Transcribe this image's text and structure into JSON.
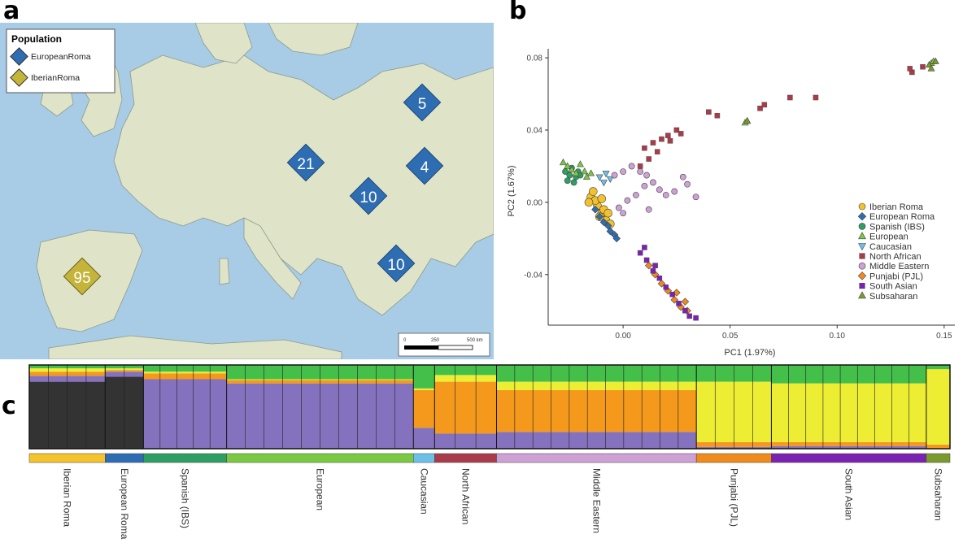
{
  "panels": {
    "a": "a",
    "b": "b",
    "c": "c"
  },
  "map": {
    "legend_title": "Population",
    "legend_items": [
      {
        "label": "EuropeanRoma",
        "color": "#2f6db3"
      },
      {
        "label": "IberianRoma",
        "color": "#c4b43a"
      }
    ],
    "markers": [
      {
        "label": "5",
        "pop": "EuropeanRoma"
      },
      {
        "label": "21",
        "pop": "EuropeanRoma"
      },
      {
        "label": "4",
        "pop": "EuropeanRoma"
      },
      {
        "label": "10",
        "pop": "EuropeanRoma"
      },
      {
        "label": "10",
        "pop": "EuropeanRoma"
      },
      {
        "label": "95",
        "pop": "IberianRoma"
      }
    ],
    "scale_bar": {
      "ticks": [
        "0",
        "250",
        "500 km"
      ]
    },
    "colors": {
      "sea": "#a8cce6",
      "land": "#dfe3c8"
    }
  },
  "chart_data": [
    {
      "type": "scatter",
      "title": "",
      "xlabel": "PC1 (1.97%)",
      "ylabel": "PC2 (1.67%)",
      "xlim": [
        -0.035,
        0.155
      ],
      "ylim": [
        -0.068,
        0.085
      ],
      "x_ticks": [
        "0.00",
        "0.05",
        "0.10",
        "0.15"
      ],
      "x_tick_values": [
        0.0,
        0.05,
        0.1,
        0.15
      ],
      "y_ticks": [
        "0.08",
        "0.04",
        "0.00",
        "-0.04"
      ],
      "y_tick_values": [
        0.08,
        0.04,
        0.0,
        -0.04
      ],
      "legend_position": "right",
      "series": [
        {
          "name": "Iberian Roma",
          "color": "#f2c12e",
          "shape": "circle",
          "points": [
            [
              -0.012,
              -0.002
            ],
            [
              -0.015,
              0.003
            ],
            [
              -0.01,
              -0.006
            ],
            [
              -0.008,
              -0.01
            ],
            [
              -0.013,
              0.001
            ],
            [
              -0.009,
              -0.004
            ],
            [
              -0.011,
              -0.008
            ],
            [
              -0.006,
              -0.012
            ],
            [
              -0.014,
              0.006
            ],
            [
              -0.016,
              0.0
            ],
            [
              -0.007,
              -0.006
            ],
            [
              -0.01,
              0.002
            ]
          ]
        },
        {
          "name": "European Roma",
          "color": "#2f6db3",
          "shape": "diamond",
          "points": [
            [
              -0.011,
              -0.008
            ],
            [
              -0.007,
              -0.013
            ],
            [
              -0.004,
              -0.018
            ],
            [
              -0.013,
              -0.004
            ],
            [
              -0.009,
              -0.011
            ],
            [
              -0.006,
              -0.016
            ],
            [
              -0.003,
              -0.02
            ]
          ]
        },
        {
          "name": "Spanish (IBS)",
          "color": "#2e9e63",
          "shape": "circle",
          "points": [
            [
              -0.027,
              0.017
            ],
            [
              -0.025,
              0.015
            ],
            [
              -0.024,
              0.019
            ],
            [
              -0.022,
              0.014
            ],
            [
              -0.026,
              0.012
            ],
            [
              -0.021,
              0.017
            ],
            [
              -0.023,
              0.011
            ],
            [
              -0.02,
              0.015
            ]
          ]
        },
        {
          "name": "European",
          "color": "#7bc943",
          "shape": "triangle",
          "points": [
            [
              -0.028,
              0.022
            ],
            [
              -0.026,
              0.02
            ],
            [
              -0.024,
              0.018
            ],
            [
              -0.02,
              0.021
            ],
            [
              -0.018,
              0.017
            ],
            [
              -0.022,
              0.016
            ],
            [
              -0.017,
              0.014
            ],
            [
              -0.015,
              0.016
            ],
            [
              0.058,
              0.045
            ],
            [
              0.057,
              0.044
            ],
            [
              0.144,
              0.077
            ],
            [
              0.145,
              0.078
            ]
          ]
        },
        {
          "name": "Caucasian",
          "color": "#6cc0e8",
          "shape": "triangle-down",
          "points": [
            [
              -0.011,
              0.014
            ],
            [
              -0.008,
              0.016
            ],
            [
              -0.006,
              0.013
            ],
            [
              -0.009,
              0.011
            ]
          ]
        },
        {
          "name": "North African",
          "color": "#a83c4a",
          "shape": "square",
          "points": [
            [
              0.01,
              0.03
            ],
            [
              0.014,
              0.033
            ],
            [
              0.018,
              0.035
            ],
            [
              0.021,
              0.037
            ],
            [
              0.025,
              0.04
            ],
            [
              0.022,
              0.034
            ],
            [
              0.027,
              0.038
            ],
            [
              0.016,
              0.028
            ],
            [
              0.012,
              0.024
            ],
            [
              0.008,
              0.02
            ],
            [
              0.04,
              0.05
            ],
            [
              0.044,
              0.048
            ],
            [
              0.064,
              0.052
            ],
            [
              0.066,
              0.054
            ],
            [
              0.078,
              0.058
            ],
            [
              0.09,
              0.058
            ],
            [
              0.135,
              0.072
            ],
            [
              0.134,
              0.074
            ],
            [
              0.14,
              0.075
            ]
          ]
        },
        {
          "name": "Middle Eastern",
          "color": "#cda0d6",
          "shape": "circle",
          "points": [
            [
              -0.004,
              0.015
            ],
            [
              0.0,
              0.017
            ],
            [
              0.004,
              0.02
            ],
            [
              0.008,
              0.017
            ],
            [
              0.011,
              0.015
            ],
            [
              0.014,
              0.011
            ],
            [
              0.017,
              0.007
            ],
            [
              0.02,
              0.004
            ],
            [
              0.024,
              0.006
            ],
            [
              0.028,
              0.014
            ],
            [
              0.03,
              0.01
            ],
            [
              0.034,
              0.003
            ],
            [
              0.01,
              0.009
            ],
            [
              0.006,
              0.004
            ],
            [
              0.002,
              0.001
            ],
            [
              -0.002,
              -0.003
            ],
            [
              0.0,
              -0.006
            ],
            [
              0.012,
              -0.004
            ]
          ]
        },
        {
          "name": "Punjabi (PJL)",
          "color": "#f08a1d",
          "shape": "diamond",
          "points": [
            [
              0.012,
              -0.035
            ],
            [
              0.015,
              -0.04
            ],
            [
              0.018,
              -0.045
            ],
            [
              0.021,
              -0.049
            ],
            [
              0.024,
              -0.054
            ],
            [
              0.027,
              -0.058
            ],
            [
              0.029,
              -0.055
            ],
            [
              0.025,
              -0.05
            ],
            [
              0.03,
              -0.06
            ]
          ]
        },
        {
          "name": "South Asian",
          "color": "#7a23b0",
          "shape": "square",
          "points": [
            [
              0.008,
              -0.028
            ],
            [
              0.011,
              -0.032
            ],
            [
              0.014,
              -0.038
            ],
            [
              0.017,
              -0.042
            ],
            [
              0.02,
              -0.047
            ],
            [
              0.023,
              -0.051
            ],
            [
              0.026,
              -0.056
            ],
            [
              0.029,
              -0.06
            ],
            [
              0.031,
              -0.063
            ],
            [
              0.034,
              -0.064
            ],
            [
              0.015,
              -0.035
            ],
            [
              0.01,
              -0.025
            ]
          ]
        },
        {
          "name": "Subsaharan",
          "color": "#7a9a2e",
          "shape": "triangle",
          "points": [
            [
              0.058,
              0.045
            ],
            [
              0.143,
              0.076
            ],
            [
              0.146,
              0.078
            ],
            [
              0.144,
              0.074
            ]
          ]
        }
      ]
    },
    {
      "type": "bar",
      "title": "",
      "xlabel": "",
      "ylabel": "",
      "ylim": [
        0,
        1
      ],
      "component_colors": [
        "#333333",
        "#8572bf",
        "#f5991c",
        "#44c04a",
        "#eded33"
      ],
      "stacked_note": "ancestry proportions per individual, averaged by population group",
      "groups": [
        {
          "label": "Iberian Roma",
          "color": "#f5c42c",
          "components": [
            0.8,
            0.07,
            0.05,
            0.04,
            0.04
          ]
        },
        {
          "label": "European Roma",
          "color": "#2f6db3",
          "components": [
            0.86,
            0.06,
            0.02,
            0.04,
            0.02
          ]
        },
        {
          "label": "Spanish (IBS)",
          "color": "#2e9e63",
          "components": [
            0.0,
            0.83,
            0.07,
            0.08,
            0.02
          ]
        },
        {
          "label": "European",
          "color": "#7bc943",
          "components": [
            0.0,
            0.78,
            0.04,
            0.17,
            0.01
          ]
        },
        {
          "label": "Caucasian",
          "color": "#6cc0e8",
          "components": [
            0.0,
            0.25,
            0.45,
            0.28,
            0.02
          ]
        },
        {
          "label": "North African",
          "color": "#a83c4a",
          "components": [
            0.0,
            0.18,
            0.62,
            0.12,
            0.08
          ]
        },
        {
          "label": "Middle Eastern",
          "color": "#cda0d6",
          "components": [
            0.0,
            0.2,
            0.5,
            0.2,
            0.1
          ]
        },
        {
          "label": "Punjabi (PJL)",
          "color": "#f08a1d",
          "components": [
            0.0,
            0.02,
            0.06,
            0.2,
            0.72
          ]
        },
        {
          "label": "South Asian",
          "color": "#7a23b0",
          "components": [
            0.0,
            0.03,
            0.05,
            0.22,
            0.7
          ]
        },
        {
          "label": "Subsaharan",
          "color": "#7a9a2e",
          "components": [
            0.0,
            0.0,
            0.05,
            0.05,
            0.9
          ]
        }
      ],
      "group_widths": [
        93,
        47,
        102,
        229,
        26,
        76,
        245,
        92,
        190,
        29
      ]
    }
  ]
}
